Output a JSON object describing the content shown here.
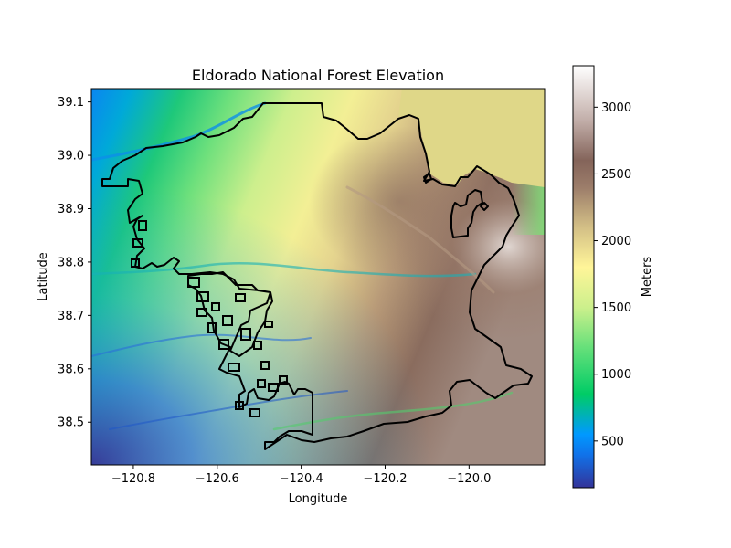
{
  "map": {
    "title": "Eldorado National Forest Elevation",
    "xlabel": "Longitude",
    "ylabel": "Latitude",
    "x_range": [
      -120.9,
      -119.82
    ],
    "y_range": [
      38.42,
      39.125
    ],
    "x_ticks": [
      -120.8,
      -120.6,
      -120.4,
      -120.2,
      -120.0
    ],
    "x_tick_labels": [
      "−120.8",
      "−120.6",
      "−120.4",
      "−120.2",
      "−120.0"
    ],
    "y_ticks": [
      38.5,
      38.6,
      38.7,
      38.8,
      38.9,
      39.0,
      39.1
    ],
    "y_tick_labels": [
      "38.5",
      "38.6",
      "38.7",
      "38.8",
      "38.9",
      "39.0",
      "39.1"
    ],
    "boundary_color": "#000000",
    "lake_color": "#dfd788"
  },
  "colorbar": {
    "label": "Meters",
    "colormap": "terrain",
    "range": [
      150,
      3310
    ],
    "ticks": [
      500,
      1000,
      1500,
      2000,
      2500,
      3000
    ],
    "tick_labels": [
      "500",
      "1000",
      "1500",
      "2000",
      "2500",
      "3000"
    ],
    "stops": [
      {
        "value": 150,
        "color": "#333399"
      },
      {
        "value": 400,
        "color": "#1073ea"
      },
      {
        "value": 550,
        "color": "#0099ff"
      },
      {
        "value": 850,
        "color": "#00cc66"
      },
      {
        "value": 1200,
        "color": "#66e07a"
      },
      {
        "value": 1500,
        "color": "#ccf08c"
      },
      {
        "value": 1800,
        "color": "#fff599"
      },
      {
        "value": 2100,
        "color": "#d3bf86"
      },
      {
        "value": 2400,
        "color": "#9c7d6a"
      },
      {
        "value": 2600,
        "color": "#84645a"
      },
      {
        "value": 2900,
        "color": "#c2aea9"
      },
      {
        "value": 3310,
        "color": "#ffffff"
      }
    ]
  }
}
